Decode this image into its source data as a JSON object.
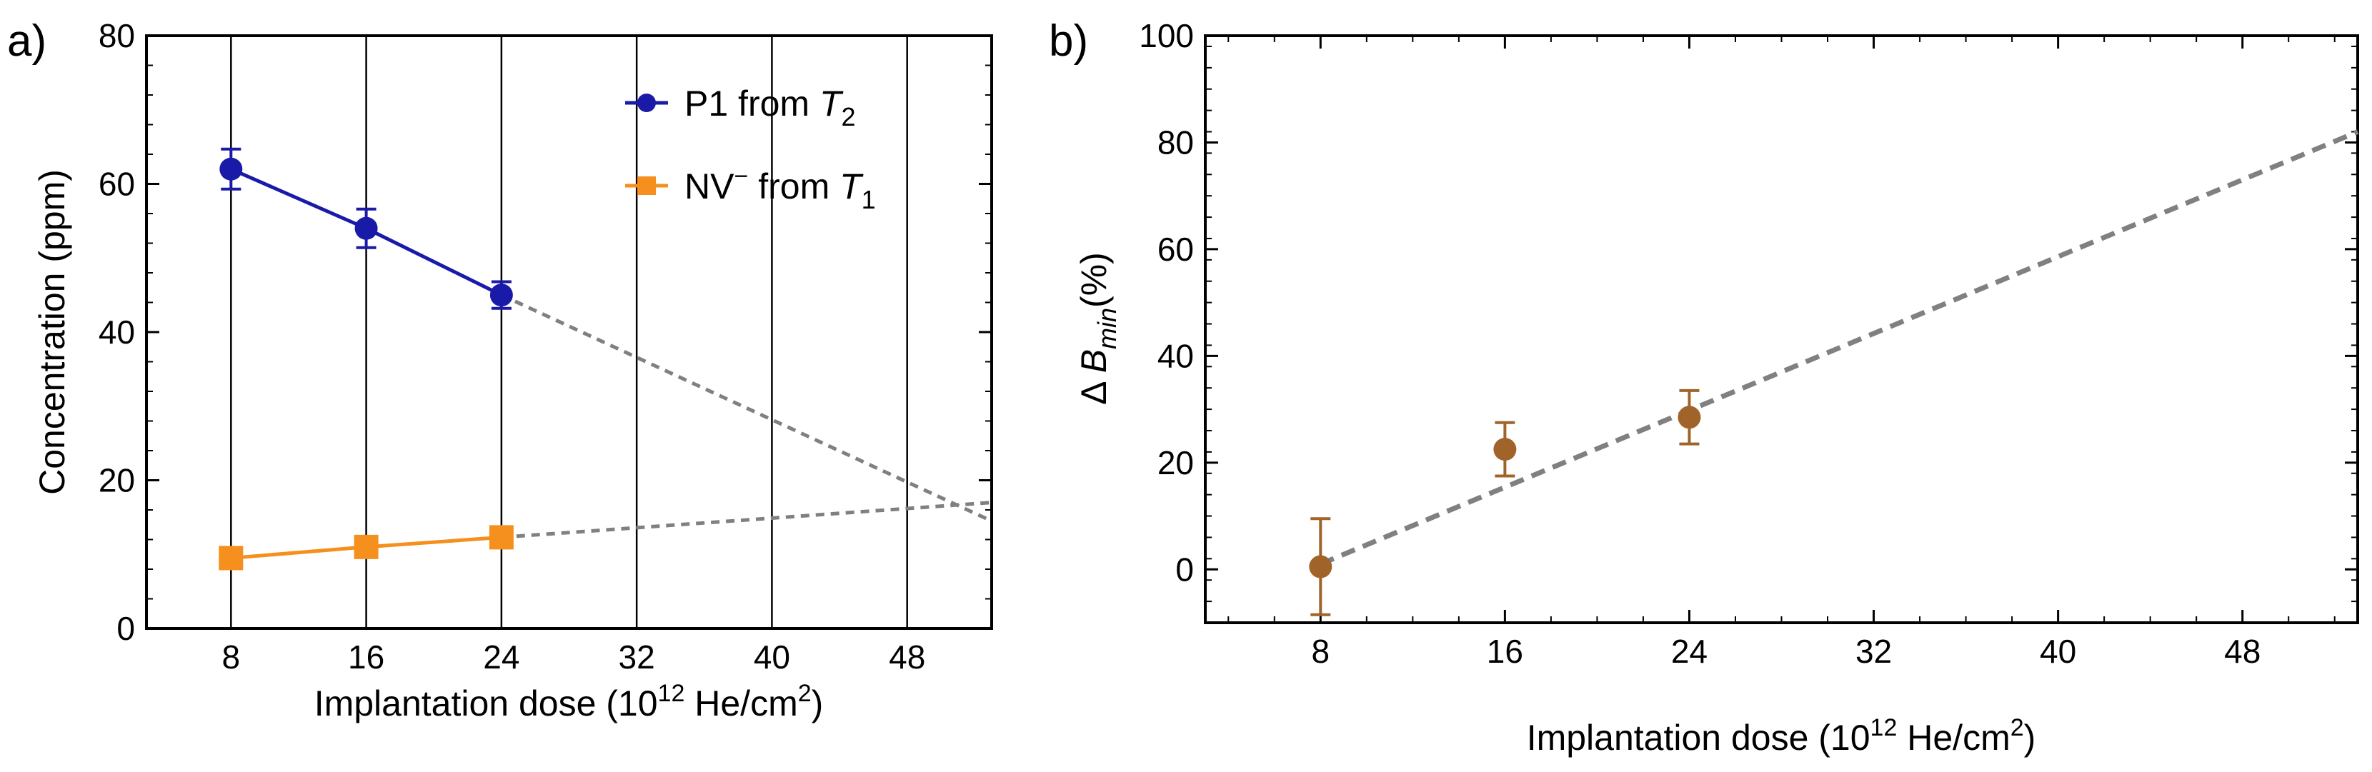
{
  "chart_data": [
    {
      "panel_label": "a)",
      "type": "line",
      "xlabel": {
        "main": "Implantation dose (10",
        "exp": "12",
        "unit": " He/cm",
        "unit_exp": "2",
        "close": ")"
      },
      "ylabel": "Concentration (ppm)",
      "xlim": [
        3,
        53
      ],
      "ylim": [
        0,
        80
      ],
      "xticks": [
        8,
        16,
        24,
        32,
        40,
        48
      ],
      "yticks": [
        0,
        20,
        40,
        60,
        80
      ],
      "series": [
        {
          "name": "P1 from T2",
          "legend": {
            "prefix": "P1 from ",
            "italic": "T",
            "sub": "2",
            "sup": ""
          },
          "marker": "circle",
          "color": "#1a1aa8",
          "x": [
            8,
            16,
            24
          ],
          "y": [
            62.0,
            54.0,
            45.0
          ],
          "err": [
            2.7,
            2.6,
            1.8
          ]
        },
        {
          "name": "NV- from T1",
          "legend": {
            "prefix": "NV",
            "sup": "−",
            "mid": " from ",
            "italic": "T",
            "sub": "1"
          },
          "marker": "square",
          "color": "#f5901e",
          "x": [
            8,
            16,
            24
          ],
          "y": [
            9.5,
            11.0,
            12.3
          ],
          "err": [
            0,
            0,
            0
          ]
        }
      ],
      "fits": [
        {
          "x": [
            24,
            53
          ],
          "y": [
            45.0,
            14.5
          ],
          "style": "dashed",
          "color": "#808080"
        },
        {
          "x": [
            24,
            53
          ],
          "y": [
            12.3,
            17.0
          ],
          "style": "dashed",
          "color": "#808080"
        }
      ],
      "legend_position": "top-right"
    },
    {
      "panel_label": "b)",
      "type": "scatter",
      "xlabel": {
        "main": "Implantation dose (10",
        "exp": "12",
        "unit": " He/cm",
        "unit_exp": "2",
        "close": ")"
      },
      "ylabel": {
        "prefix": "Δ ",
        "italic": "B",
        "sub": "min",
        "suffix": "(%)"
      },
      "xlim": [
        3,
        53
      ],
      "ylim": [
        -10,
        100
      ],
      "xticks": [
        8,
        16,
        24,
        32,
        40,
        48
      ],
      "yticks": [
        0,
        20,
        40,
        60,
        80,
        100
      ],
      "series": [
        {
          "name": "Delta B_min",
          "marker": "circle",
          "color": "#a0642a",
          "x": [
            8,
            16,
            24
          ],
          "y": [
            0.5,
            22.5,
            28.5
          ],
          "err": [
            9,
            5,
            5
          ]
        }
      ],
      "fits": [
        {
          "x": [
            8,
            53
          ],
          "y": [
            1.0,
            82.0
          ],
          "style": "dashed",
          "color": "#808080"
        }
      ]
    }
  ]
}
